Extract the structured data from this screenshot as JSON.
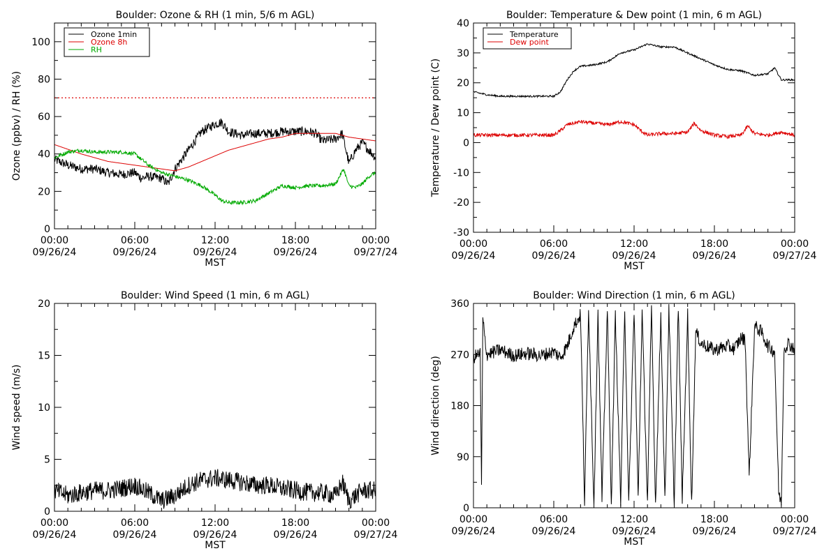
{
  "chart_data": [
    {
      "type": "line",
      "title": "Boulder: Ozone & RH (1 min, 5/6 m AGL)",
      "xlabel": "MST",
      "ylabel": "Ozone (ppbv) / RH (%)",
      "xlim": [
        "09/26/24 00:00",
        "09/27/24 00:00"
      ],
      "xticks": [
        {
          "time": "00:00",
          "date": "09/26/24"
        },
        {
          "time": "06:00",
          "date": "09/26/24"
        },
        {
          "time": "12:00",
          "date": "09/26/24"
        },
        {
          "time": "18:00",
          "date": "09/26/24"
        },
        {
          "time": "00:00",
          "date": "09/27/24"
        }
      ],
      "ylim": [
        0,
        110
      ],
      "yticks": [
        "0",
        "20",
        "40",
        "60",
        "80",
        "100"
      ],
      "grid": false,
      "legend_position": "top-left",
      "reference_line": {
        "value": 70,
        "color": "#dd0000",
        "style": "dotted"
      },
      "series": [
        {
          "name": "Ozone 1min",
          "color": "#000000",
          "noise": 2.5,
          "points": [
            [
              0,
              37
            ],
            [
              1,
              34
            ],
            [
              2,
              32
            ],
            [
              3,
              32
            ],
            [
              4,
              30
            ],
            [
              5,
              29
            ],
            [
              6,
              30
            ],
            [
              6.5,
              27
            ],
            [
              7,
              28
            ],
            [
              8,
              27
            ],
            [
              8.5,
              24
            ],
            [
              9,
              32
            ],
            [
              10,
              42
            ],
            [
              11,
              52
            ],
            [
              12,
              56
            ],
            [
              12.5,
              57
            ],
            [
              13,
              52
            ],
            [
              14,
              50
            ],
            [
              15,
              51
            ],
            [
              16,
              51
            ],
            [
              17,
              52
            ],
            [
              18,
              52
            ],
            [
              19,
              52
            ],
            [
              19.5,
              51
            ],
            [
              20,
              47
            ],
            [
              21,
              48
            ],
            [
              21.5,
              51
            ],
            [
              22,
              35
            ],
            [
              22.5,
              42
            ],
            [
              23,
              46
            ],
            [
              23.5,
              42
            ],
            [
              24,
              38
            ]
          ]
        },
        {
          "name": "Ozone 8h",
          "color": "#dd0000",
          "noise": 0,
          "points": [
            [
              0,
              45
            ],
            [
              2,
              40
            ],
            [
              4,
              36
            ],
            [
              6,
              34
            ],
            [
              8,
              32
            ],
            [
              9,
              31
            ],
            [
              10,
              33
            ],
            [
              11,
              36
            ],
            [
              12,
              39
            ],
            [
              13,
              42
            ],
            [
              14,
              44
            ],
            [
              15,
              46
            ],
            [
              16,
              48
            ],
            [
              17,
              49
            ],
            [
              18,
              51
            ],
            [
              19,
              51
            ],
            [
              20,
              51
            ],
            [
              21,
              51
            ],
            [
              22,
              49
            ],
            [
              23,
              48
            ],
            [
              24,
              47
            ]
          ]
        },
        {
          "name": "RH",
          "color": "#00aa00",
          "noise": 1,
          "points": [
            [
              0,
              38
            ],
            [
              1,
              41
            ],
            [
              2,
              42
            ],
            [
              3,
              41
            ],
            [
              4,
              41
            ],
            [
              5,
              41
            ],
            [
              6,
              40
            ],
            [
              6.7,
              36
            ],
            [
              7,
              34
            ],
            [
              8,
              30
            ],
            [
              9,
              28
            ],
            [
              10,
              26
            ],
            [
              11,
              23
            ],
            [
              12,
              18
            ],
            [
              12.5,
              15
            ],
            [
              13,
              14
            ],
            [
              14,
              14
            ],
            [
              15,
              15
            ],
            [
              16,
              19
            ],
            [
              17,
              23
            ],
            [
              18,
              22
            ],
            [
              19,
              23
            ],
            [
              20,
              23
            ],
            [
              21,
              24
            ],
            [
              21.6,
              32
            ],
            [
              22,
              23
            ],
            [
              22.5,
              22
            ],
            [
              23,
              24
            ],
            [
              23.5,
              28
            ],
            [
              24,
              30
            ]
          ]
        }
      ]
    },
    {
      "type": "line",
      "title": "Boulder: Temperature & Dew point (1 min, 6 m AGL)",
      "xlabel": "MST",
      "ylabel": "Temperature / Dew point (C)",
      "xlim": [
        "09/26/24 00:00",
        "09/27/24 00:00"
      ],
      "xticks": [
        {
          "time": "00:00",
          "date": "09/26/24"
        },
        {
          "time": "06:00",
          "date": "09/26/24"
        },
        {
          "time": "12:00",
          "date": "09/26/24"
        },
        {
          "time": "18:00",
          "date": "09/26/24"
        },
        {
          "time": "00:00",
          "date": "09/27/24"
        }
      ],
      "ylim": [
        -30,
        40
      ],
      "yticks": [
        "-30",
        "-20",
        "-10",
        "0",
        "10",
        "20",
        "30",
        "40"
      ],
      "grid": false,
      "legend_position": "top-left",
      "series": [
        {
          "name": "Temperature",
          "color": "#000000",
          "noise": 0.3,
          "points": [
            [
              0,
              17
            ],
            [
              1,
              16
            ],
            [
              2,
              15.5
            ],
            [
              3,
              15.5
            ],
            [
              4,
              15.5
            ],
            [
              5,
              15.5
            ],
            [
              6,
              15.5
            ],
            [
              6.5,
              17
            ],
            [
              7,
              21
            ],
            [
              7.5,
              24
            ],
            [
              8,
              25.5
            ],
            [
              9,
              26
            ],
            [
              10,
              27
            ],
            [
              11,
              30
            ],
            [
              12,
              31
            ],
            [
              13,
              33
            ],
            [
              14,
              32
            ],
            [
              15,
              32
            ],
            [
              16,
              30
            ],
            [
              17,
              28
            ],
            [
              18,
              26
            ],
            [
              19,
              24.5
            ],
            [
              20,
              24
            ],
            [
              21,
              22.5
            ],
            [
              22,
              23
            ],
            [
              22.5,
              25
            ],
            [
              23,
              21
            ],
            [
              24,
              21
            ]
          ]
        },
        {
          "name": "Dew point",
          "color": "#dd0000",
          "noise": 0.6,
          "points": [
            [
              0,
              2.5
            ],
            [
              1,
              2.5
            ],
            [
              2,
              2.5
            ],
            [
              3,
              2.5
            ],
            [
              4,
              2.5
            ],
            [
              5,
              2.5
            ],
            [
              6,
              2.5
            ],
            [
              6.5,
              4
            ],
            [
              7,
              6
            ],
            [
              8,
              7
            ],
            [
              9,
              6.5
            ],
            [
              10,
              6
            ],
            [
              11,
              7
            ],
            [
              12,
              6
            ],
            [
              12.5,
              4
            ],
            [
              13,
              2.5
            ],
            [
              14,
              3
            ],
            [
              15,
              3
            ],
            [
              16,
              3.5
            ],
            [
              16.5,
              6.5
            ],
            [
              17,
              4
            ],
            [
              18,
              2.5
            ],
            [
              19,
              2
            ],
            [
              20,
              2.5
            ],
            [
              20.5,
              5.5
            ],
            [
              21,
              3
            ],
            [
              22,
              2.5
            ],
            [
              23,
              3.5
            ],
            [
              24,
              2.5
            ]
          ]
        }
      ]
    },
    {
      "type": "line",
      "title": "Boulder: Wind Speed (1 min, 6 m AGL)",
      "xlabel": "MST",
      "ylabel": "Wind speed (m/s)",
      "xlim": [
        "09/26/24 00:00",
        "09/27/24 00:00"
      ],
      "xticks": [
        {
          "time": "00:00",
          "date": "09/26/24"
        },
        {
          "time": "06:00",
          "date": "09/26/24"
        },
        {
          "time": "12:00",
          "date": "09/26/24"
        },
        {
          "time": "18:00",
          "date": "09/26/24"
        },
        {
          "time": "00:00",
          "date": "09/27/24"
        }
      ],
      "ylim": [
        0,
        20
      ],
      "yticks": [
        "0",
        "5",
        "10",
        "15",
        "20"
      ],
      "grid": false,
      "series": [
        {
          "color": "#000000",
          "noise": 0.9,
          "points": [
            [
              0,
              2
            ],
            [
              1,
              1.5
            ],
            [
              2,
              1.8
            ],
            [
              3,
              2
            ],
            [
              4,
              2
            ],
            [
              5,
              2.2
            ],
            [
              6,
              2.5
            ],
            [
              7,
              1.8
            ],
            [
              8,
              1
            ],
            [
              9,
              1.5
            ],
            [
              10,
              2.5
            ],
            [
              11,
              3
            ],
            [
              12,
              3.2
            ],
            [
              13,
              3
            ],
            [
              14,
              2.8
            ],
            [
              15,
              2.5
            ],
            [
              16,
              2.5
            ],
            [
              17,
              2.2
            ],
            [
              18,
              2
            ],
            [
              19,
              1.8
            ],
            [
              20,
              1.8
            ],
            [
              21,
              1.5
            ],
            [
              21.5,
              2.8
            ],
            [
              22,
              1
            ],
            [
              22.5,
              1.5
            ],
            [
              23,
              2
            ],
            [
              24,
              2
            ]
          ]
        }
      ]
    },
    {
      "type": "scatter",
      "title": "Boulder: Wind Direction (1 min, 6 m AGL)",
      "xlabel": "MST",
      "ylabel": "Wind direction (deg)",
      "xlim": [
        "09/26/24 00:00",
        "09/27/24 00:00"
      ],
      "xticks": [
        {
          "time": "00:00",
          "date": "09/26/24"
        },
        {
          "time": "06:00",
          "date": "09/26/24"
        },
        {
          "time": "12:00",
          "date": "09/26/24"
        },
        {
          "time": "18:00",
          "date": "09/26/24"
        },
        {
          "time": "00:00",
          "date": "09/27/24"
        }
      ],
      "ylim": [
        0,
        360
      ],
      "yticks": [
        "0",
        "90",
        "180",
        "270",
        "360"
      ],
      "grid": false,
      "series": [
        {
          "color": "#000000",
          "points": [
            [
              0,
              265
            ],
            [
              0.5,
              272
            ],
            [
              0.6,
              35
            ],
            [
              0.7,
              330
            ],
            [
              1,
              270
            ],
            [
              2,
              278
            ],
            [
              3,
              268
            ],
            [
              4,
              272
            ],
            [
              5,
              268
            ],
            [
              6,
              275
            ],
            [
              6.5,
              265
            ],
            [
              7,
              285
            ],
            [
              7.5,
              320
            ],
            [
              8,
              340
            ],
            [
              8.3,
              10
            ],
            [
              8.6,
              355
            ],
            [
              9,
              5
            ],
            [
              9.3,
              345
            ],
            [
              9.6,
              15
            ],
            [
              10,
              350
            ],
            [
              10.3,
              8
            ],
            [
              10.6,
              340
            ],
            [
              11,
              10
            ],
            [
              11.3,
              355
            ],
            [
              11.6,
              5
            ],
            [
              12,
              350
            ],
            [
              12.3,
              15
            ],
            [
              12.6,
              345
            ],
            [
              13,
              8
            ],
            [
              13.3,
              355
            ],
            [
              13.6,
              5
            ],
            [
              14,
              340
            ],
            [
              14.3,
              10
            ],
            [
              14.6,
              350
            ],
            [
              15,
              5
            ],
            [
              15.3,
              355
            ],
            [
              15.6,
              15
            ],
            [
              16,
              340
            ],
            [
              16.3,
              5
            ],
            [
              16.6,
              310
            ],
            [
              17,
              290
            ],
            [
              18,
              278
            ],
            [
              19,
              285
            ],
            [
              19.5,
              280
            ],
            [
              20,
              300
            ],
            [
              20.3,
              295
            ],
            [
              20.6,
              55
            ],
            [
              21,
              320
            ],
            [
              21.5,
              310
            ],
            [
              22,
              285
            ],
            [
              22.5,
              275
            ],
            [
              22.8,
              30
            ],
            [
              23,
              5
            ],
            [
              23.2,
              280
            ],
            [
              23.5,
              290
            ],
            [
              24,
              280
            ]
          ]
        }
      ]
    }
  ]
}
